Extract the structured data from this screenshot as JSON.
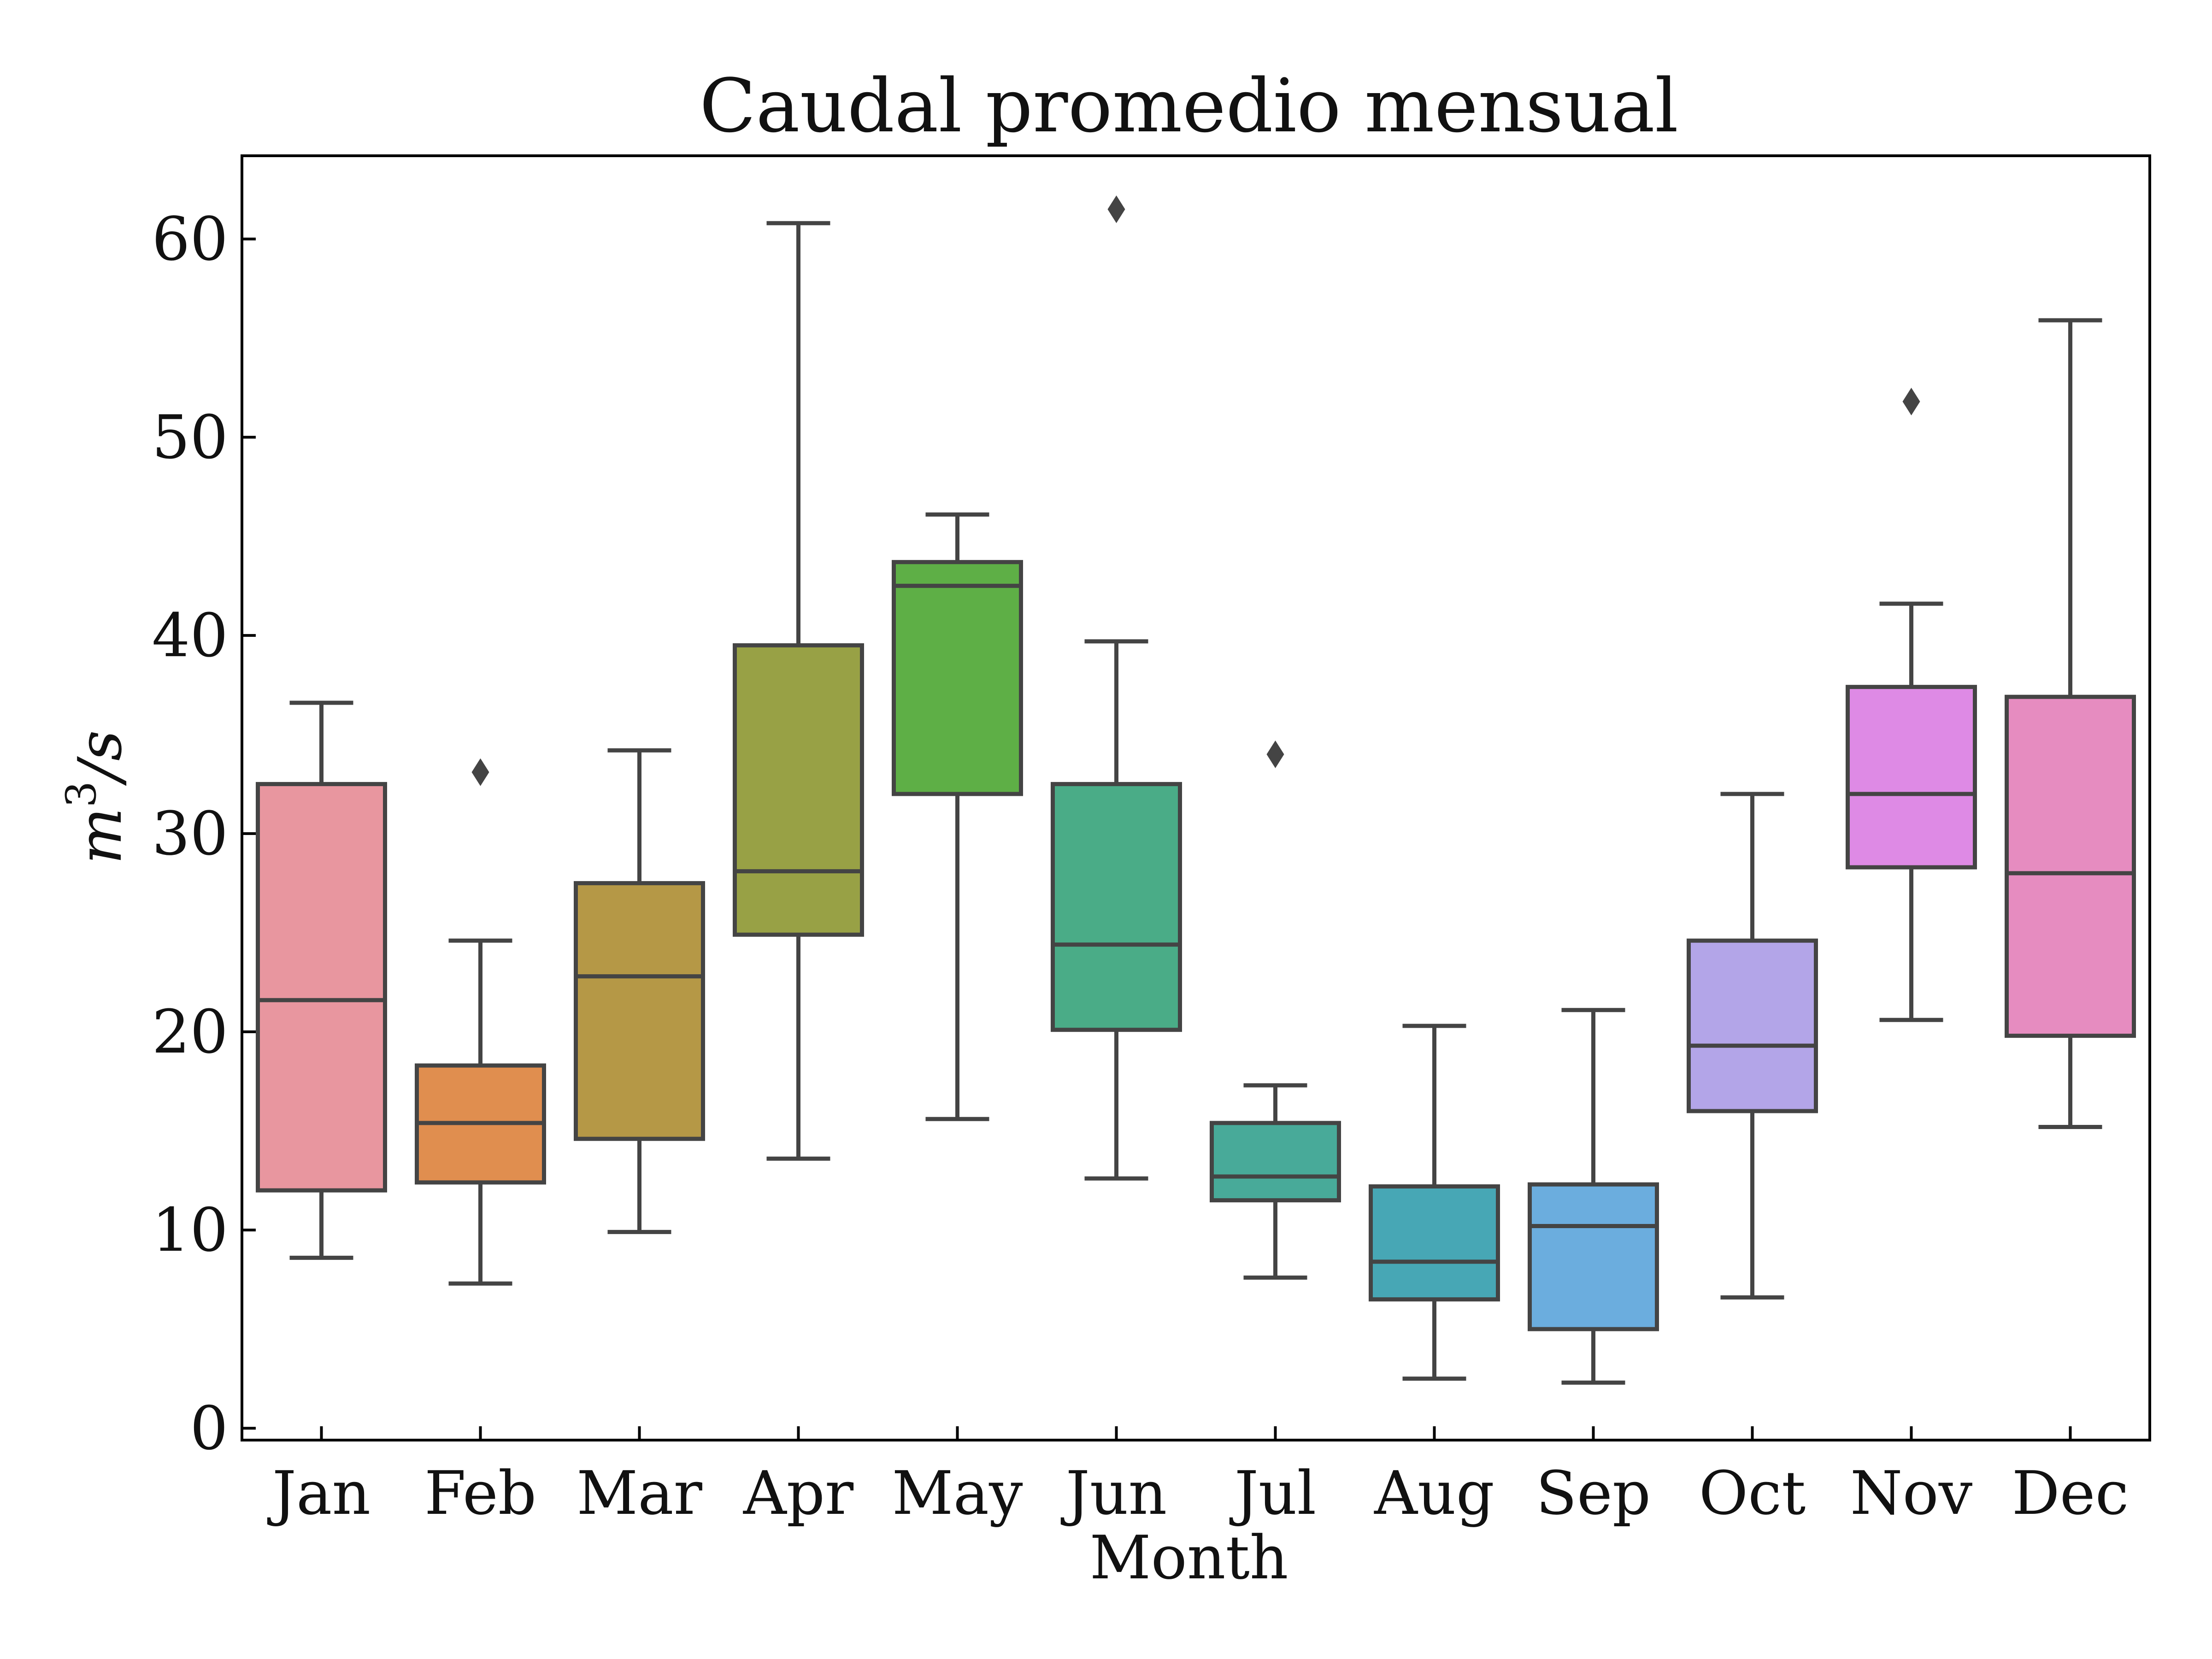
{
  "chart_data": {
    "type": "box",
    "title": "Caudal promedio mensual",
    "xlabel": "Month",
    "ylabel_base": "m",
    "ylabel_exponent": "3",
    "ylabel_unit": "/s",
    "ylim": [
      -0.6,
      64.2
    ],
    "yticks": [
      0,
      10,
      20,
      30,
      40,
      50,
      60
    ],
    "grid": false,
    "categories": [
      "Jan",
      "Feb",
      "Mar",
      "Apr",
      "May",
      "Jun",
      "Jul",
      "Aug",
      "Sep",
      "Oct",
      "Nov",
      "Dec"
    ],
    "boxes": [
      {
        "month": "Jan",
        "whisker_low": 8.6,
        "q1": 12.0,
        "median": 21.6,
        "q3": 32.5,
        "whisker_high": 36.6,
        "fliers": [],
        "color": "#e8969f"
      },
      {
        "month": "Feb",
        "whisker_low": 7.3,
        "q1": 12.4,
        "median": 15.4,
        "q3": 18.3,
        "whisker_high": 24.6,
        "fliers": [
          33.1
        ],
        "color": "#e08e4f"
      },
      {
        "month": "Mar",
        "whisker_low": 9.9,
        "q1": 14.6,
        "median": 22.8,
        "q3": 27.5,
        "whisker_high": 34.2,
        "fliers": [],
        "color": "#b59846"
      },
      {
        "month": "Apr",
        "whisker_low": 13.6,
        "q1": 24.9,
        "median": 28.1,
        "q3": 39.5,
        "whisker_high": 60.8,
        "fliers": [],
        "color": "#98a145"
      },
      {
        "month": "May",
        "whisker_low": 15.6,
        "q1": 32.0,
        "median": 42.5,
        "q3": 43.7,
        "whisker_high": 46.1,
        "fliers": [],
        "color": "#5eaf46"
      },
      {
        "month": "Jun",
        "whisker_low": 12.6,
        "q1": 20.1,
        "median": 24.4,
        "q3": 32.5,
        "whisker_high": 39.7,
        "fliers": [
          61.5
        ],
        "color": "#4aac87"
      },
      {
        "month": "Jul",
        "whisker_low": 7.6,
        "q1": 11.5,
        "median": 12.7,
        "q3": 15.4,
        "whisker_high": 17.3,
        "fliers": [
          34.0
        ],
        "color": "#48aa99"
      },
      {
        "month": "Aug",
        "whisker_low": 2.5,
        "q1": 6.5,
        "median": 8.4,
        "q3": 12.2,
        "whisker_high": 20.3,
        "fliers": [],
        "color": "#47a7b5"
      },
      {
        "month": "Sep",
        "whisker_low": 2.3,
        "q1": 5.0,
        "median": 10.2,
        "q3": 12.3,
        "whisker_high": 21.1,
        "fliers": [],
        "color": "#6badde"
      },
      {
        "month": "Oct",
        "whisker_low": 6.6,
        "q1": 16.0,
        "median": 19.3,
        "q3": 24.6,
        "whisker_high": 32.0,
        "fliers": [],
        "color": "#b3a5e8"
      },
      {
        "month": "Nov",
        "whisker_low": 20.6,
        "q1": 28.3,
        "median": 32.0,
        "q3": 37.4,
        "whisker_high": 41.6,
        "fliers": [
          51.8
        ],
        "color": "#de8ae5"
      },
      {
        "month": "Dec",
        "whisker_low": 15.2,
        "q1": 19.8,
        "median": 28.0,
        "q3": 36.9,
        "whisker_high": 55.9,
        "fliers": [],
        "color": "#e68cc0"
      }
    ]
  }
}
